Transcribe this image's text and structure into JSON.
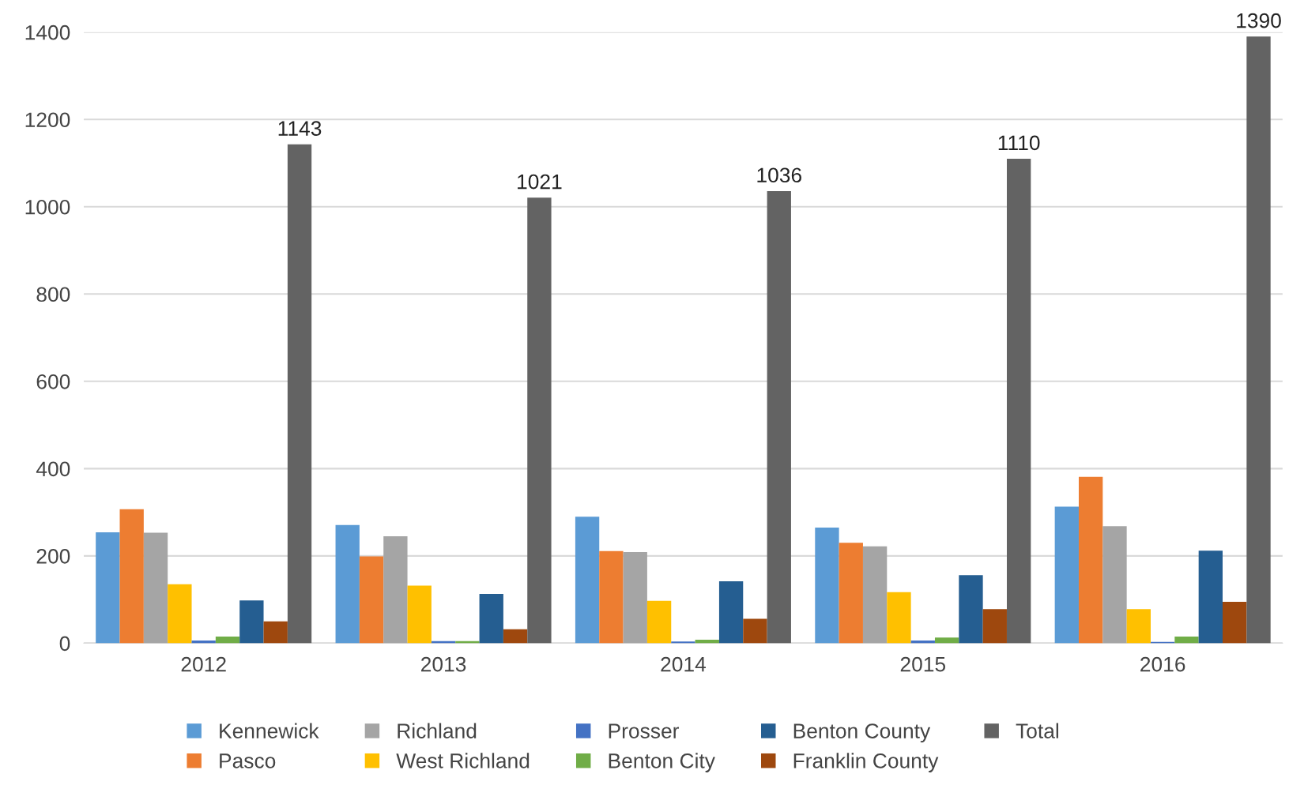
{
  "chart_data": {
    "type": "bar",
    "categories": [
      "2012",
      "2013",
      "2014",
      "2015",
      "2016"
    ],
    "series": [
      {
        "name": "Kennewick",
        "color": "#5b9bd5",
        "values": [
          254,
          271,
          290,
          265,
          313
        ]
      },
      {
        "name": "Pasco",
        "color": "#ed7d31",
        "values": [
          307,
          199,
          211,
          230,
          381
        ]
      },
      {
        "name": "Richland",
        "color": "#a5a5a5",
        "values": [
          253,
          245,
          209,
          222,
          268
        ]
      },
      {
        "name": "West Richland",
        "color": "#ffc000",
        "values": [
          135,
          132,
          97,
          117,
          78
        ]
      },
      {
        "name": "Prosser",
        "color": "#4472c4",
        "values": [
          6,
          5,
          4,
          6,
          3
        ]
      },
      {
        "name": "Benton City",
        "color": "#70ad47",
        "values": [
          15,
          5,
          8,
          13,
          15
        ]
      },
      {
        "name": "Benton County",
        "color": "#255e91",
        "values": [
          98,
          113,
          142,
          156,
          212
        ]
      },
      {
        "name": "Franklin County",
        "color": "#9e480e",
        "values": [
          50,
          32,
          56,
          78,
          95
        ]
      },
      {
        "name": "Total",
        "color": "#636363",
        "values": [
          1143,
          1021,
          1036,
          1110,
          1390
        ],
        "value_labels": [
          "1143",
          "1021",
          "1036",
          "1110",
          "1390"
        ]
      }
    ],
    "ylim": [
      0,
      1400
    ],
    "yticks": [
      0,
      200,
      400,
      600,
      800,
      1000,
      1200,
      1400
    ],
    "grid": "y",
    "legend": "bottom"
  }
}
